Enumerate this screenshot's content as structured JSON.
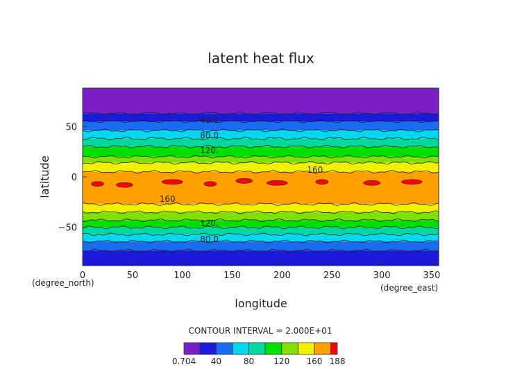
{
  "chart_data": {
    "type": "heatmap",
    "title": "latent heat flux",
    "xlabel": "longitude",
    "ylabel": "latitude",
    "x_unit": "(degree_east)",
    "y_unit": "(degree_north)",
    "xlim": [
      0,
      357
    ],
    "ylim": [
      -88,
      88
    ],
    "x_ticks": [
      0,
      50,
      100,
      150,
      200,
      250,
      300,
      350
    ],
    "y_ticks": [
      50,
      0,
      -50
    ],
    "contour_interval_text": "CONTOUR INTERVAL = 2.000E+01",
    "contour_labels": [
      {
        "text": "40.0",
        "lon": 127,
        "lat": 56
      },
      {
        "text": "80.0",
        "lon": 127,
        "lat": 41
      },
      {
        "text": "120.",
        "lon": 127,
        "lat": 26
      },
      {
        "text": "160",
        "lon": 233,
        "lat": 7
      },
      {
        "text": "160",
        "lon": 85,
        "lat": -22
      },
      {
        "text": "120.",
        "lon": 127,
        "lat": -46
      },
      {
        "text": "80.0",
        "lon": 127,
        "lat": -62
      }
    ],
    "levels": [
      0.704,
      20,
      40,
      60,
      80,
      100,
      120,
      140,
      160,
      180,
      188
    ],
    "level_colors": [
      "#7a1fc8",
      "#1a1ad8",
      "#1a6cf0",
      "#00d8f0",
      "#00d8a0",
      "#00e000",
      "#80e000",
      "#f0f000",
      "#ffa000",
      "#ff0000",
      "#ffa8b8"
    ],
    "colorbar_labels": [
      "0.704",
      "40",
      "80",
      "120",
      "160",
      "188"
    ],
    "latitude_band_values": [
      {
        "lat": [
          63,
          88
        ],
        "value": 10
      },
      {
        "lat": [
          55,
          63
        ],
        "value": 30
      },
      {
        "lat": [
          46,
          55
        ],
        "value": 50
      },
      {
        "lat": [
          38,
          46
        ],
        "value": 70
      },
      {
        "lat": [
          30,
          38
        ],
        "value": 90
      },
      {
        "lat": [
          20,
          30
        ],
        "value": 110
      },
      {
        "lat": [
          14,
          20
        ],
        "value": 130
      },
      {
        "lat": [
          5,
          14
        ],
        "value": 150
      },
      {
        "lat": [
          -27,
          5
        ],
        "value": 170
      },
      {
        "lat": [
          -35,
          -27
        ],
        "value": 150
      },
      {
        "lat": [
          -43,
          -35
        ],
        "value": 130
      },
      {
        "lat": [
          -50,
          -43
        ],
        "value": 110
      },
      {
        "lat": [
          -57,
          -50
        ],
        "value": 90
      },
      {
        "lat": [
          -64,
          -57
        ],
        "value": 70
      },
      {
        "lat": [
          -73,
          -64
        ],
        "value": 50
      },
      {
        "lat": [
          -88,
          -73
        ],
        "value": 30
      }
    ],
    "peak_patches": [
      {
        "lon": 15,
        "lat": -7,
        "value": 182
      },
      {
        "lon": 42,
        "lat": -8,
        "value": 182
      },
      {
        "lon": 90,
        "lat": -5,
        "value": 182
      },
      {
        "lon": 128,
        "lat": -7,
        "value": 182
      },
      {
        "lon": 162,
        "lat": -4,
        "value": 182
      },
      {
        "lon": 195,
        "lat": -6,
        "value": 182
      },
      {
        "lon": 240,
        "lat": -5,
        "value": 182
      },
      {
        "lon": 290,
        "lat": -6,
        "value": 182
      },
      {
        "lon": 330,
        "lat": -5,
        "value": 182
      }
    ]
  }
}
